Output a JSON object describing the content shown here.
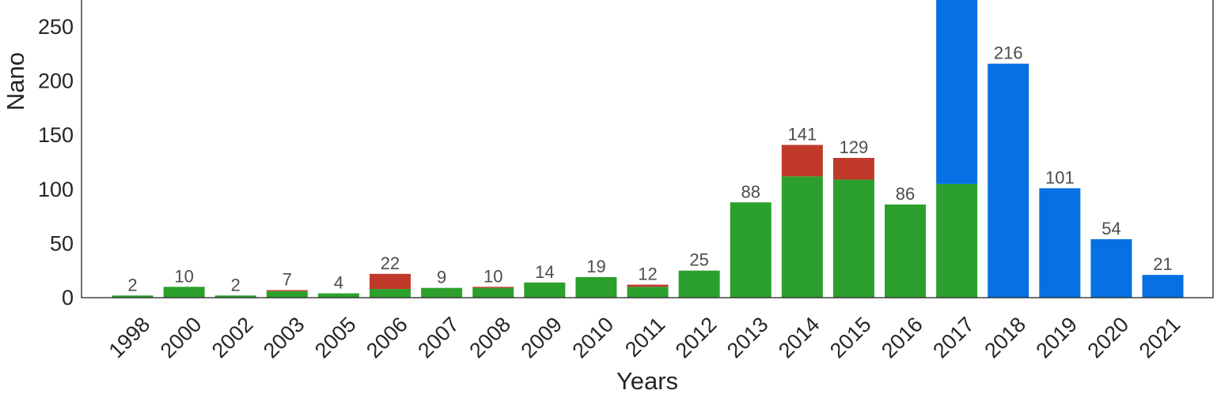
{
  "chart_data": {
    "type": "bar",
    "stacked": true,
    "categories": [
      "1998",
      "2000",
      "2002",
      "2003",
      "2005",
      "2006",
      "2007",
      "2008",
      "2009",
      "2010",
      "2011",
      "2012",
      "2013",
      "2014",
      "2015",
      "2016",
      "2017",
      "2018",
      "2019",
      "2020",
      "2021"
    ],
    "series": [
      {
        "color": "#2ca02c",
        "values": [
          2,
          10,
          2,
          6,
          4,
          8,
          9,
          9,
          14,
          19,
          10,
          25,
          88,
          112,
          109,
          86,
          105,
          0,
          0,
          0,
          0
        ]
      },
      {
        "color": "#c0392b",
        "values": [
          0,
          0,
          0,
          1,
          0,
          14,
          0,
          1,
          0,
          0,
          2,
          0,
          0,
          29,
          20,
          0,
          0,
          0,
          0,
          0,
          0
        ]
      },
      {
        "color": "#0770e3",
        "values": [
          0,
          0,
          0,
          0,
          0,
          0,
          0,
          0,
          0,
          0,
          0,
          0,
          0,
          0,
          0,
          0,
          175,
          216,
          101,
          54,
          21
        ]
      }
    ],
    "totals": [
      "2",
      "10",
      "2",
      "7",
      "4",
      "22",
      "9",
      "10",
      "14",
      "19",
      "12",
      "25",
      "88",
      "141",
      "129",
      "86",
      "",
      "216",
      "101",
      "54",
      "21"
    ],
    "xlabel": "Years",
    "ylabel": "Nano",
    "ylim": [
      0,
      280
    ],
    "yticks": [
      0,
      50,
      100,
      150,
      200,
      250
    ],
    "grid": false,
    "legend": "none"
  }
}
